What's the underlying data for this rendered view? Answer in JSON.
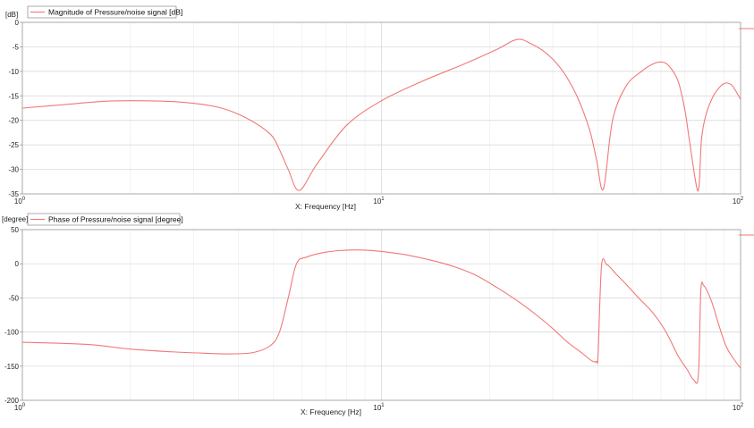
{
  "colors": {
    "series": "#f07878",
    "grid": "#d4d4d4",
    "axis": "#9a9a9a"
  },
  "chart_data": [
    {
      "type": "line",
      "legend": "Magnitude of Pressure/noise signal [dB]",
      "legend_position": "top-left",
      "ylabel": "[dB]",
      "xlabel": "X: Frequency [Hz]",
      "x_scale": "log",
      "xlim": [
        1,
        100
      ],
      "ylim": [
        -35,
        0
      ],
      "yticks": [
        0,
        -5,
        -10,
        -15,
        -20,
        -25,
        -30,
        -35
      ],
      "ytick_labels": [
        "0",
        "-5",
        "-10",
        "-15",
        "-20",
        "-25",
        "-30",
        "-35"
      ],
      "grid": true,
      "series": [
        {
          "x": [
            1,
            1.3,
            1.7,
            2.2,
            2.8,
            3.5,
            4.2,
            4.9,
            5.2,
            5.5,
            5.9,
            6.6,
            8,
            10,
            13,
            17,
            21,
            23.8,
            26,
            29,
            32,
            35,
            38,
            39.7,
            41.5,
            44,
            48,
            53,
            57,
            60,
            63,
            67,
            70,
            72,
            75.4,
            76.7,
            77.8,
            80,
            84,
            88,
            90,
            92,
            95,
            100
          ],
          "y": [
            -17.5,
            -16.8,
            -16.1,
            -16.0,
            -16.3,
            -17.3,
            -19.5,
            -22.8,
            -26.0,
            -30.0,
            -34.3,
            -29.0,
            -21.0,
            -16.0,
            -12.0,
            -8.5,
            -5.5,
            -3.5,
            -4.3,
            -6.5,
            -10.0,
            -15.0,
            -22.0,
            -28.0,
            -34.0,
            -20.0,
            -13.0,
            -10.0,
            -8.5,
            -8.1,
            -8.8,
            -12.0,
            -18.0,
            -24.0,
            -33.5,
            -33.0,
            -24.0,
            -19.0,
            -15.0,
            -13.0,
            -12.5,
            -12.4,
            -13.0,
            -15.7
          ]
        }
      ]
    },
    {
      "type": "line",
      "legend": "Phase of Pressure/noise signal [degree]",
      "legend_position": "top-left",
      "ylabel": "[degree]",
      "xlabel": "X: Frequency [Hz]",
      "x_scale": "log",
      "xlim": [
        1,
        100
      ],
      "ylim": [
        -200,
        50
      ],
      "yticks": [
        50,
        0,
        -50,
        -100,
        -150,
        -200
      ],
      "ytick_labels": [
        "50",
        "0",
        "-50",
        "-100",
        "-150",
        "-200"
      ],
      "grid": true,
      "series": [
        {
          "x": [
            1,
            1.5,
            2,
            2.6,
            3.2,
            3.8,
            4.4,
            4.9,
            5.2,
            5.5,
            5.8,
            6.2,
            7,
            8,
            9,
            10,
            12,
            15,
            18,
            21,
            24,
            27,
            30,
            33,
            36,
            38.5,
            39.7,
            40.1,
            41,
            42.3,
            43.3,
            45,
            48,
            52,
            57,
            62,
            67,
            71,
            74,
            76.3,
            77.5,
            79,
            83,
            87,
            91,
            95,
            100
          ],
          "y": [
            -115,
            -118,
            -125,
            -129,
            -131,
            -132,
            -130,
            -120,
            -100,
            -50,
            0,
            10,
            17,
            20,
            20,
            18,
            12,
            0,
            -15,
            -35,
            -55,
            -75,
            -95,
            -115,
            -130,
            -142,
            -143,
            -133,
            -3,
            -1,
            -5,
            -15,
            -30,
            -50,
            -72,
            -100,
            -135,
            -155,
            -170,
            -163,
            -40,
            -32,
            -55,
            -90,
            -120,
            -137,
            -153
          ]
        }
      ]
    }
  ],
  "xtick_labels": [
    {
      "base": "10",
      "exp": "0",
      "value": 1
    },
    {
      "base": "10",
      "exp": "1",
      "value": 10
    },
    {
      "base": "10",
      "exp": "2",
      "value": 100
    }
  ]
}
